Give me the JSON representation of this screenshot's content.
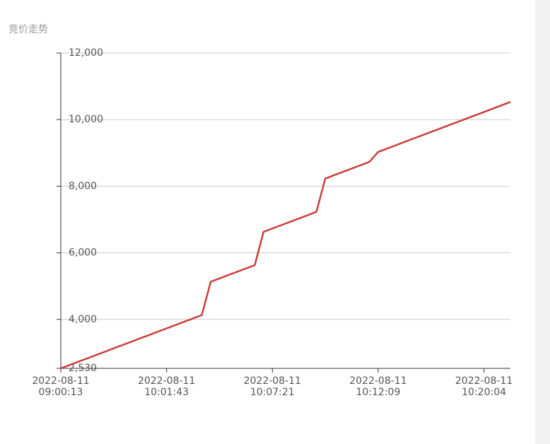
{
  "chart_data": {
    "type": "line",
    "title": "竞价走势",
    "categories": [
      "2022-08-11\n09:00:13",
      null,
      null,
      null,
      null,
      null,
      null,
      null,
      null,
      null,
      null,
      null,
      "2022-08-11\n10:01:43",
      null,
      null,
      null,
      null,
      null,
      null,
      null,
      null,
      null,
      null,
      null,
      "2022-08-11\n10:07:21",
      null,
      null,
      null,
      null,
      null,
      null,
      null,
      null,
      null,
      null,
      null,
      "2022-08-11\n10:12:09",
      null,
      null,
      null,
      null,
      null,
      null,
      null,
      null,
      null,
      null,
      null,
      "2022-08-11\n10:20:04",
      null,
      null,
      null
    ],
    "series": [
      {
        "name": "竞价",
        "color": "#cc3e3a",
        "values": [
          2530,
          2630,
          2730,
          2830,
          2930,
          3030,
          3130,
          3230,
          3330,
          3430,
          3530,
          3630,
          3730,
          3830,
          3930,
          4030,
          4130,
          5130,
          5230,
          5330,
          5430,
          5530,
          5630,
          6630,
          6730,
          6830,
          6930,
          7030,
          7130,
          7230,
          8230,
          8330,
          8430,
          8530,
          8630,
          8730,
          9030,
          9130,
          9230,
          9330,
          9430,
          9530,
          9630,
          9730,
          9830,
          9930,
          10030,
          10130,
          10230,
          10330,
          10430,
          10530
        ]
      }
    ],
    "ylim": [
      2530,
      12000
    ],
    "yticks": [
      {
        "value": 2530,
        "label": "2,530"
      },
      {
        "value": 4000,
        "label": "4,000"
      },
      {
        "value": 6000,
        "label": "6,000"
      },
      {
        "value": 8000,
        "label": "8,000"
      },
      {
        "value": 10000,
        "label": "10,000"
      },
      {
        "value": 12000,
        "label": "12,000"
      }
    ],
    "grid": true
  }
}
